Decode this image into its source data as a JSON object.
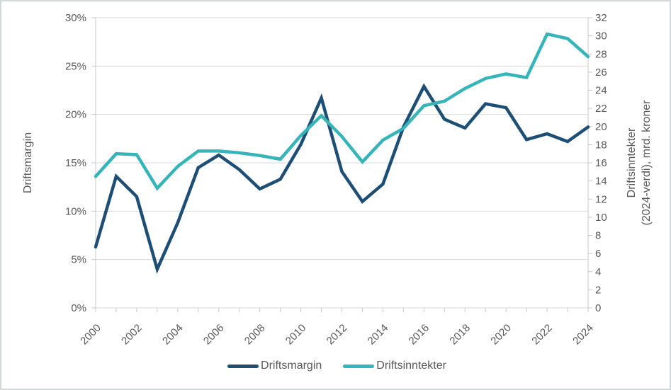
{
  "chart_data": {
    "type": "line",
    "x": [
      2000,
      2001,
      2002,
      2003,
      2004,
      2005,
      2006,
      2007,
      2008,
      2009,
      2010,
      2011,
      2012,
      2013,
      2014,
      2015,
      2016,
      2017,
      2018,
      2019,
      2020,
      2021,
      2022,
      2023,
      2024
    ],
    "series": [
      {
        "name": "Driftsmargin",
        "axis": "left",
        "color": "#1d4f76",
        "values": [
          6.3,
          13.6,
          11.5,
          4.0,
          8.8,
          14.5,
          15.8,
          14.3,
          12.3,
          13.3,
          16.9,
          21.7,
          14.1,
          11.0,
          12.8,
          18.7,
          22.9,
          19.5,
          18.6,
          21.1,
          20.7,
          17.4,
          18.0,
          17.2,
          18.7
        ]
      },
      {
        "name": "Driftsinntekter",
        "axis": "right",
        "color": "#35b4b9",
        "values": [
          14.5,
          17.0,
          16.9,
          13.2,
          15.6,
          17.3,
          17.3,
          17.1,
          16.8,
          16.4,
          19.0,
          21.2,
          18.9,
          16.1,
          18.5,
          19.8,
          22.3,
          22.8,
          24.2,
          25.3,
          25.8,
          25.4,
          30.2,
          29.7,
          27.7
        ]
      }
    ],
    "left_axis": {
      "title": "Driftsmargin",
      "min": 0,
      "max": 30,
      "step": 5,
      "tick_labels": [
        "0%",
        "5%",
        "10%",
        "15%",
        "20%",
        "25%",
        "30%"
      ]
    },
    "right_axis": {
      "title_line1": "Driftsinntekter",
      "title_line2": "(2024-verdi), mrd. kroner",
      "min": 0,
      "max": 32,
      "step": 2,
      "tick_labels": [
        "0",
        "2",
        "4",
        "6",
        "8",
        "10",
        "12",
        "14",
        "16",
        "18",
        "20",
        "22",
        "24",
        "26",
        "28",
        "30",
        "32"
      ]
    },
    "x_axis": {
      "labeled_years": [
        "2000",
        "2002",
        "2004",
        "2006",
        "2008",
        "2010",
        "2012",
        "2014",
        "2016",
        "2018",
        "2020",
        "2022",
        "2024"
      ],
      "label_rotation_deg": -45
    },
    "legend": {
      "position": "bottom",
      "items": [
        "Driftsmargin",
        "Driftsinntekter"
      ]
    },
    "grid": true,
    "colors": {
      "driftsmargin": "#1d4f76",
      "driftsinntekter": "#35b4b9",
      "grid": "#d9d9d9",
      "axis_line": "#c6c9cc",
      "tick": "#c6c9cc",
      "label": "#595959",
      "background": "#ffffff",
      "border": "#d3d8db"
    }
  }
}
